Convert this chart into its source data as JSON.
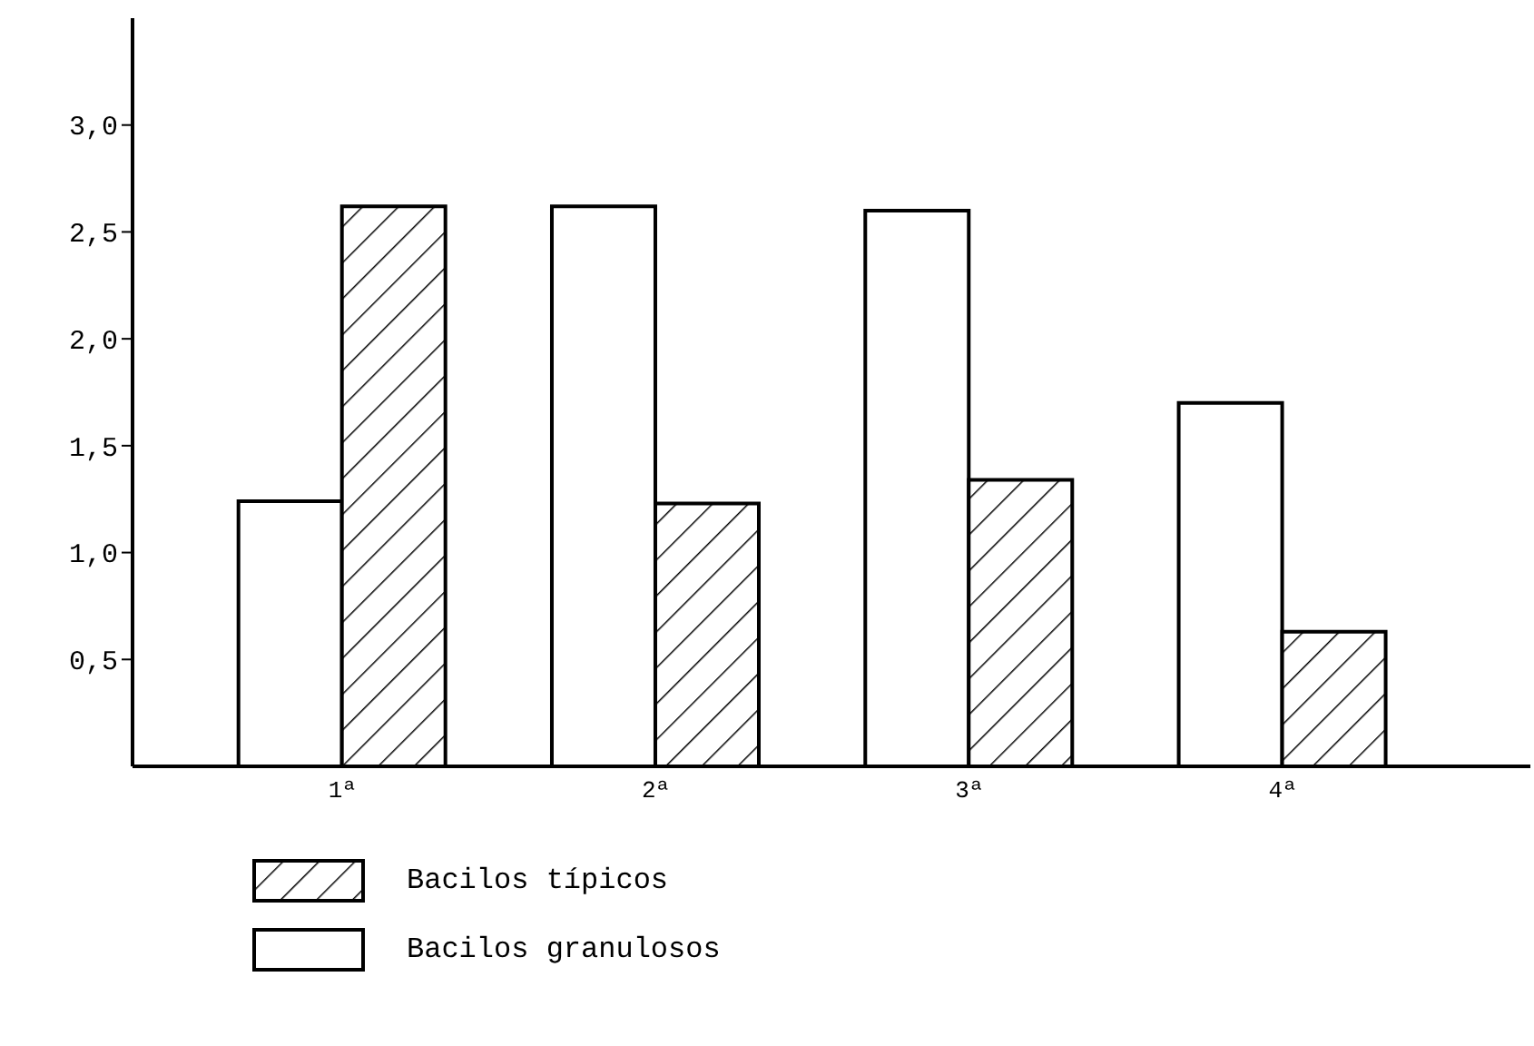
{
  "chart_data": {
    "type": "bar",
    "categories": [
      "1ª",
      "2ª",
      "3ª",
      "4ª"
    ],
    "series": [
      {
        "name": "Bacilos granulosos",
        "color": "#000000",
        "values": [
          1.24,
          2.62,
          2.6,
          1.7
        ]
      },
      {
        "name": "Bacilos típicos",
        "color": "#000000",
        "values": [
          2.62,
          1.23,
          1.34,
          0.63
        ]
      }
    ],
    "ylim": [
      0,
      3.5
    ],
    "yticks": [
      {
        "value": 0.5,
        "label": "0,5"
      },
      {
        "value": 1,
        "label": "1,0"
      },
      {
        "value": 1.5,
        "label": "1,5"
      },
      {
        "value": 2,
        "label": "2,0"
      },
      {
        "value": 2.5,
        "label": "2,5"
      },
      {
        "value": 3,
        "label": "3,0"
      }
    ],
    "legend": "bottom",
    "grid": false
  }
}
